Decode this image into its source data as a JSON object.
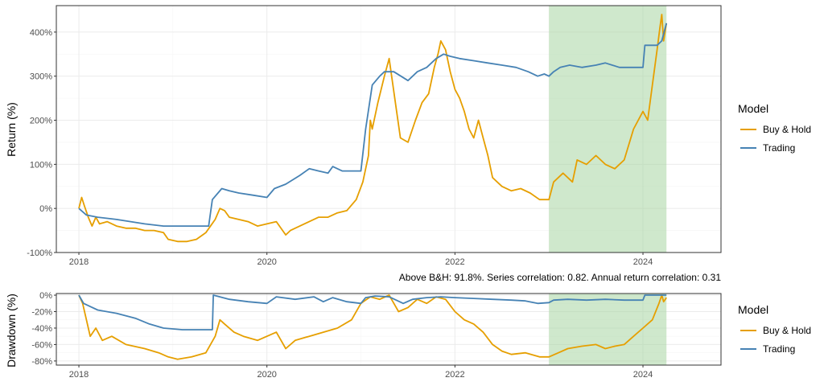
{
  "colors": {
    "buy_hold": "#E69F00",
    "trading": "#4682B4",
    "highlight": "#A8D5A2",
    "grid_major": "#EBEBEB",
    "grid_minor": "#F5F5F5",
    "panel_border": "#333333"
  },
  "caption": "Above B&H: 91.8%. Series correlation: 0.82. Annual return correlation: 0.31",
  "chart_data": [
    {
      "type": "line",
      "ylabel": "Return (%)",
      "xlim": [
        2017.76,
        2024.83
      ],
      "ylim": [
        -100,
        460
      ],
      "x_ticks": [
        2018,
        2020,
        2022,
        2024
      ],
      "x_tick_labels": [
        "2018",
        "2020",
        "2022",
        "2024"
      ],
      "y_ticks": [
        -100,
        0,
        100,
        200,
        300,
        400
      ],
      "y_tick_labels": [
        "-100%",
        "0%",
        "100%",
        "200%",
        "300%",
        "400%"
      ],
      "highlight_range": [
        2023.0,
        2024.25
      ],
      "grid": true,
      "legend": {
        "title": "Model",
        "position": "right"
      },
      "series": [
        {
          "name": "Buy & Hold",
          "color": "#E69F00",
          "points": [
            [
              2018.0,
              0
            ],
            [
              2018.03,
              25
            ],
            [
              2018.06,
              5
            ],
            [
              2018.1,
              -20
            ],
            [
              2018.14,
              -40
            ],
            [
              2018.18,
              -20
            ],
            [
              2018.22,
              -35
            ],
            [
              2018.3,
              -30
            ],
            [
              2018.4,
              -40
            ],
            [
              2018.5,
              -45
            ],
            [
              2018.6,
              -45
            ],
            [
              2018.7,
              -50
            ],
            [
              2018.8,
              -50
            ],
            [
              2018.9,
              -55
            ],
            [
              2018.95,
              -70
            ],
            [
              2019.05,
              -75
            ],
            [
              2019.15,
              -75
            ],
            [
              2019.25,
              -70
            ],
            [
              2019.35,
              -55
            ],
            [
              2019.45,
              -25
            ],
            [
              2019.5,
              0
            ],
            [
              2019.55,
              -5
            ],
            [
              2019.6,
              -20
            ],
            [
              2019.7,
              -25
            ],
            [
              2019.8,
              -30
            ],
            [
              2019.9,
              -40
            ],
            [
              2020.0,
              -35
            ],
            [
              2020.1,
              -30
            ],
            [
              2020.2,
              -60
            ],
            [
              2020.25,
              -50
            ],
            [
              2020.35,
              -40
            ],
            [
              2020.45,
              -30
            ],
            [
              2020.55,
              -20
            ],
            [
              2020.65,
              -20
            ],
            [
              2020.75,
              -10
            ],
            [
              2020.85,
              -5
            ],
            [
              2020.95,
              20
            ],
            [
              2021.02,
              60
            ],
            [
              2021.08,
              120
            ],
            [
              2021.1,
              200
            ],
            [
              2021.12,
              180
            ],
            [
              2021.18,
              240
            ],
            [
              2021.25,
              300
            ],
            [
              2021.3,
              340
            ],
            [
              2021.38,
              220
            ],
            [
              2021.42,
              160
            ],
            [
              2021.5,
              150
            ],
            [
              2021.58,
              200
            ],
            [
              2021.65,
              240
            ],
            [
              2021.72,
              260
            ],
            [
              2021.78,
              320
            ],
            [
              2021.82,
              350
            ],
            [
              2021.85,
              380
            ],
            [
              2021.9,
              360
            ],
            [
              2021.95,
              310
            ],
            [
              2022.0,
              270
            ],
            [
              2022.05,
              250
            ],
            [
              2022.1,
              220
            ],
            [
              2022.15,
              180
            ],
            [
              2022.2,
              160
            ],
            [
              2022.25,
              200
            ],
            [
              2022.3,
              160
            ],
            [
              2022.35,
              120
            ],
            [
              2022.4,
              70
            ],
            [
              2022.45,
              60
            ],
            [
              2022.5,
              50
            ],
            [
              2022.6,
              40
            ],
            [
              2022.7,
              45
            ],
            [
              2022.8,
              35
            ],
            [
              2022.9,
              20
            ],
            [
              2023.0,
              20
            ],
            [
              2023.05,
              60
            ],
            [
              2023.15,
              80
            ],
            [
              2023.25,
              60
            ],
            [
              2023.3,
              110
            ],
            [
              2023.4,
              100
            ],
            [
              2023.5,
              120
            ],
            [
              2023.6,
              100
            ],
            [
              2023.7,
              90
            ],
            [
              2023.8,
              110
            ],
            [
              2023.9,
              180
            ],
            [
              2024.0,
              220
            ],
            [
              2024.05,
              200
            ],
            [
              2024.1,
              280
            ],
            [
              2024.15,
              360
            ],
            [
              2024.18,
              410
            ],
            [
              2024.2,
              440
            ],
            [
              2024.22,
              380
            ],
            [
              2024.25,
              420
            ]
          ]
        },
        {
          "name": "Trading",
          "color": "#4682B4",
          "points": [
            [
              2018.0,
              0
            ],
            [
              2018.08,
              -15
            ],
            [
              2018.2,
              -20
            ],
            [
              2018.4,
              -25
            ],
            [
              2018.55,
              -30
            ],
            [
              2018.7,
              -35
            ],
            [
              2018.9,
              -40
            ],
            [
              2019.1,
              -40
            ],
            [
              2019.3,
              -40
            ],
            [
              2019.38,
              -40
            ],
            [
              2019.42,
              20
            ],
            [
              2019.52,
              45
            ],
            [
              2019.6,
              40
            ],
            [
              2019.7,
              35
            ],
            [
              2019.85,
              30
            ],
            [
              2020.0,
              25
            ],
            [
              2020.08,
              45
            ],
            [
              2020.2,
              55
            ],
            [
              2020.35,
              75
            ],
            [
              2020.45,
              90
            ],
            [
              2020.55,
              85
            ],
            [
              2020.65,
              80
            ],
            [
              2020.7,
              95
            ],
            [
              2020.8,
              85
            ],
            [
              2021.0,
              85
            ],
            [
              2021.05,
              180
            ],
            [
              2021.12,
              280
            ],
            [
              2021.2,
              300
            ],
            [
              2021.25,
              310
            ],
            [
              2021.35,
              310
            ],
            [
              2021.5,
              290
            ],
            [
              2021.6,
              310
            ],
            [
              2021.7,
              320
            ],
            [
              2021.8,
              340
            ],
            [
              2021.88,
              350
            ],
            [
              2021.95,
              345
            ],
            [
              2022.05,
              340
            ],
            [
              2022.2,
              335
            ],
            [
              2022.35,
              330
            ],
            [
              2022.5,
              325
            ],
            [
              2022.65,
              320
            ],
            [
              2022.78,
              310
            ],
            [
              2022.88,
              300
            ],
            [
              2022.95,
              305
            ],
            [
              2023.0,
              300
            ],
            [
              2023.05,
              310
            ],
            [
              2023.12,
              320
            ],
            [
              2023.22,
              325
            ],
            [
              2023.35,
              320
            ],
            [
              2023.5,
              325
            ],
            [
              2023.6,
              330
            ],
            [
              2023.75,
              320
            ],
            [
              2023.9,
              320
            ],
            [
              2024.0,
              320
            ],
            [
              2024.02,
              370
            ],
            [
              2024.15,
              370
            ],
            [
              2024.2,
              380
            ],
            [
              2024.25,
              420
            ]
          ]
        }
      ]
    },
    {
      "type": "line",
      "ylabel": "Drawdown (%)",
      "xlim": [
        2017.76,
        2024.83
      ],
      "ylim": [
        -85,
        2
      ],
      "x_ticks": [
        2018,
        2020,
        2022,
        2024
      ],
      "x_tick_labels": [
        "2018",
        "2020",
        "2022",
        "2024"
      ],
      "y_ticks": [
        -80,
        -60,
        -40,
        -20,
        0
      ],
      "y_tick_labels": [
        "-80%",
        "-60%",
        "-40%",
        "-20%",
        "0%"
      ],
      "highlight_range": [
        2023.0,
        2024.25
      ],
      "grid": true,
      "legend": {
        "title": "Model",
        "position": "right"
      },
      "series": [
        {
          "name": "Buy & Hold",
          "color": "#E69F00",
          "points": [
            [
              2018.0,
              0
            ],
            [
              2018.04,
              -10
            ],
            [
              2018.08,
              -30
            ],
            [
              2018.12,
              -50
            ],
            [
              2018.18,
              -40
            ],
            [
              2018.25,
              -55
            ],
            [
              2018.35,
              -50
            ],
            [
              2018.5,
              -60
            ],
            [
              2018.7,
              -65
            ],
            [
              2018.85,
              -70
            ],
            [
              2018.95,
              -75
            ],
            [
              2019.05,
              -78
            ],
            [
              2019.2,
              -75
            ],
            [
              2019.35,
              -70
            ],
            [
              2019.45,
              -50
            ],
            [
              2019.5,
              -30
            ],
            [
              2019.55,
              -35
            ],
            [
              2019.65,
              -45
            ],
            [
              2019.75,
              -50
            ],
            [
              2019.9,
              -55
            ],
            [
              2020.0,
              -50
            ],
            [
              2020.1,
              -45
            ],
            [
              2020.2,
              -65
            ],
            [
              2020.3,
              -55
            ],
            [
              2020.45,
              -50
            ],
            [
              2020.6,
              -45
            ],
            [
              2020.75,
              -40
            ],
            [
              2020.9,
              -30
            ],
            [
              2021.0,
              -10
            ],
            [
              2021.1,
              -2
            ],
            [
              2021.2,
              -5
            ],
            [
              2021.3,
              0
            ],
            [
              2021.4,
              -20
            ],
            [
              2021.5,
              -15
            ],
            [
              2021.6,
              -5
            ],
            [
              2021.7,
              -10
            ],
            [
              2021.8,
              -2
            ],
            [
              2021.9,
              -5
            ],
            [
              2022.0,
              -20
            ],
            [
              2022.1,
              -30
            ],
            [
              2022.2,
              -35
            ],
            [
              2022.3,
              -45
            ],
            [
              2022.4,
              -60
            ],
            [
              2022.5,
              -68
            ],
            [
              2022.6,
              -72
            ],
            [
              2022.75,
              -70
            ],
            [
              2022.9,
              -75
            ],
            [
              2023.0,
              -75
            ],
            [
              2023.1,
              -70
            ],
            [
              2023.2,
              -65
            ],
            [
              2023.35,
              -62
            ],
            [
              2023.5,
              -60
            ],
            [
              2023.6,
              -65
            ],
            [
              2023.7,
              -62
            ],
            [
              2023.8,
              -60
            ],
            [
              2023.9,
              -50
            ],
            [
              2024.0,
              -40
            ],
            [
              2024.1,
              -30
            ],
            [
              2024.17,
              -10
            ],
            [
              2024.2,
              0
            ],
            [
              2024.22,
              -8
            ],
            [
              2024.25,
              -3
            ]
          ]
        },
        {
          "name": "Trading",
          "color": "#4682B4",
          "points": [
            [
              2018.0,
              0
            ],
            [
              2018.05,
              -10
            ],
            [
              2018.2,
              -18
            ],
            [
              2018.4,
              -22
            ],
            [
              2018.6,
              -28
            ],
            [
              2018.75,
              -35
            ],
            [
              2018.9,
              -40
            ],
            [
              2019.1,
              -42
            ],
            [
              2019.3,
              -42
            ],
            [
              2019.42,
              -42
            ],
            [
              2019.43,
              0
            ],
            [
              2019.6,
              -5
            ],
            [
              2019.8,
              -8
            ],
            [
              2020.0,
              -10
            ],
            [
              2020.1,
              -2
            ],
            [
              2020.3,
              -5
            ],
            [
              2020.5,
              -2
            ],
            [
              2020.6,
              -8
            ],
            [
              2020.7,
              -3
            ],
            [
              2020.85,
              -8
            ],
            [
              2021.0,
              -10
            ],
            [
              2021.05,
              -3
            ],
            [
              2021.15,
              -1
            ],
            [
              2021.3,
              -2
            ],
            [
              2021.45,
              -10
            ],
            [
              2021.55,
              -5
            ],
            [
              2021.7,
              -3
            ],
            [
              2021.85,
              -2
            ],
            [
              2022.0,
              -3
            ],
            [
              2022.2,
              -4
            ],
            [
              2022.4,
              -5
            ],
            [
              2022.6,
              -6
            ],
            [
              2022.75,
              -7
            ],
            [
              2022.88,
              -10
            ],
            [
              2023.0,
              -9
            ],
            [
              2023.05,
              -6
            ],
            [
              2023.2,
              -5
            ],
            [
              2023.4,
              -6
            ],
            [
              2023.6,
              -5
            ],
            [
              2023.8,
              -6
            ],
            [
              2024.0,
              -6
            ],
            [
              2024.02,
              0
            ],
            [
              2024.15,
              0
            ],
            [
              2024.25,
              0
            ]
          ]
        }
      ]
    }
  ]
}
